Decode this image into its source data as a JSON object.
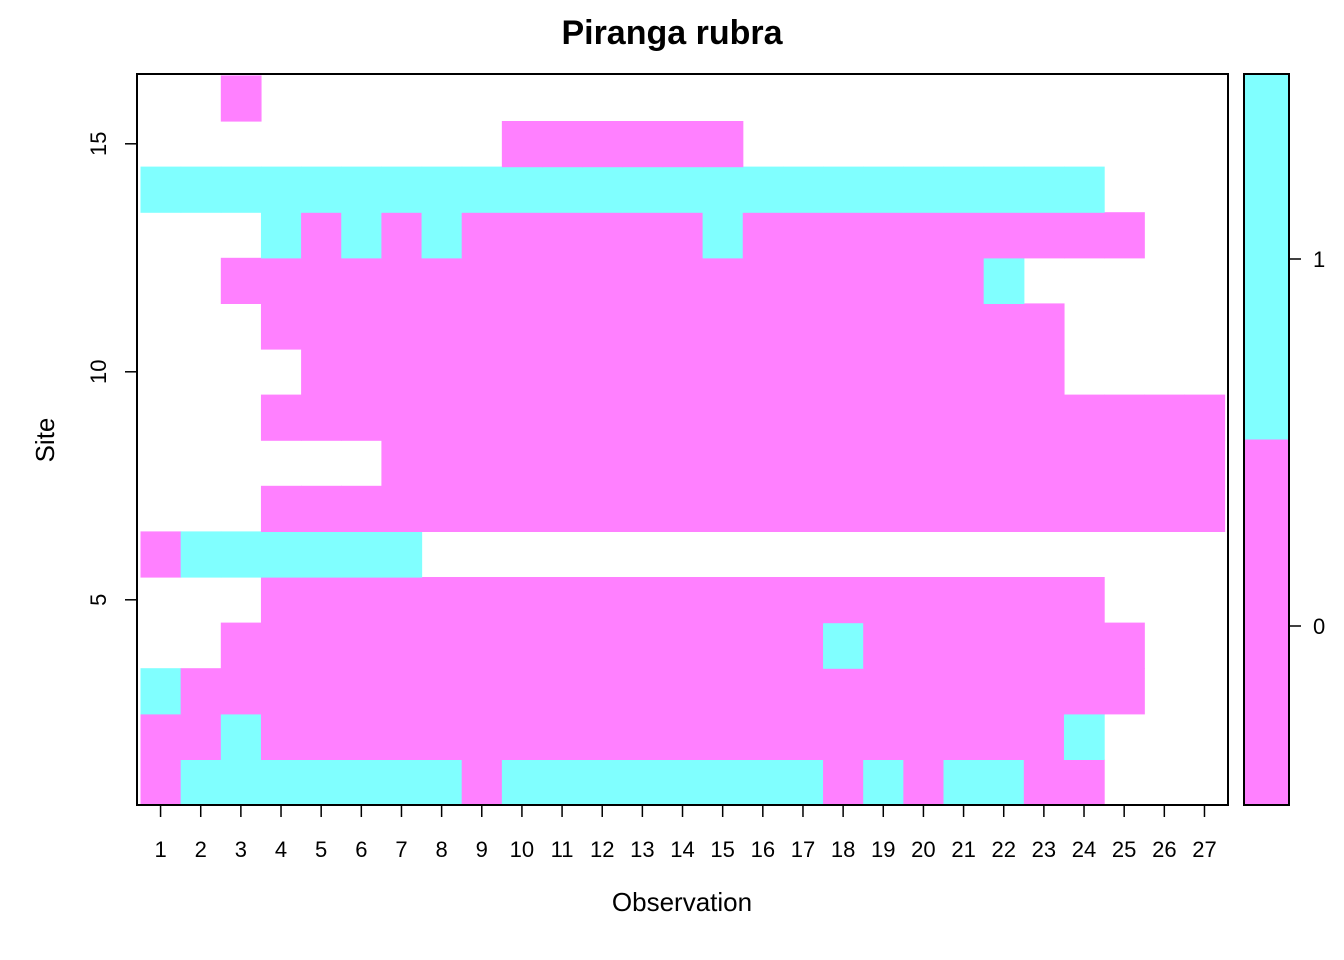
{
  "chart_data": {
    "type": "heatmap",
    "title": "Piranga rubra",
    "xlabel": "Observation",
    "ylabel": "Site",
    "x_ticks": [
      "1",
      "2",
      "3",
      "4",
      "5",
      "6",
      "7",
      "8",
      "9",
      "10",
      "11",
      "12",
      "13",
      "14",
      "15",
      "16",
      "17",
      "18",
      "19",
      "20",
      "21",
      "22",
      "23",
      "24",
      "25",
      "26",
      "27"
    ],
    "y_ticks": [
      "5",
      "10",
      "15"
    ],
    "y_tick_values": [
      5,
      10,
      15
    ],
    "xlim": [
      0.5,
      27.5
    ],
    "ylim": [
      0.5,
      16.5
    ],
    "grid": false,
    "legend": {
      "placement": "right",
      "levels": [
        "0",
        "1"
      ]
    },
    "colors": {
      "0": "#ff80ff",
      "1": "#80ffff",
      "missing": "#ffffff"
    },
    "rows": [
      {
        "site": 1,
        "values": [
          0,
          1,
          1,
          1,
          1,
          1,
          1,
          1,
          0,
          1,
          1,
          1,
          1,
          1,
          1,
          1,
          1,
          0,
          1,
          0,
          1,
          1,
          0,
          0,
          null,
          null,
          null
        ]
      },
      {
        "site": 2,
        "values": [
          0,
          0,
          1,
          0,
          0,
          0,
          0,
          0,
          0,
          0,
          0,
          0,
          0,
          0,
          0,
          0,
          0,
          0,
          0,
          0,
          0,
          0,
          0,
          1,
          null,
          null,
          null
        ]
      },
      {
        "site": 3,
        "values": [
          1,
          0,
          0,
          0,
          0,
          0,
          0,
          0,
          0,
          0,
          0,
          0,
          0,
          0,
          0,
          0,
          0,
          0,
          0,
          0,
          0,
          0,
          0,
          0,
          0,
          null,
          null
        ]
      },
      {
        "site": 4,
        "values": [
          null,
          null,
          0,
          0,
          0,
          0,
          0,
          0,
          0,
          0,
          0,
          0,
          0,
          0,
          0,
          0,
          0,
          1,
          0,
          0,
          0,
          0,
          0,
          0,
          0,
          null,
          null
        ]
      },
      {
        "site": 5,
        "values": [
          null,
          null,
          null,
          0,
          0,
          0,
          0,
          0,
          0,
          0,
          0,
          0,
          0,
          0,
          0,
          0,
          0,
          0,
          0,
          0,
          0,
          0,
          0,
          0,
          null,
          null,
          null
        ]
      },
      {
        "site": 6,
        "values": [
          0,
          1,
          1,
          1,
          1,
          1,
          1,
          null,
          null,
          null,
          null,
          null,
          null,
          null,
          null,
          null,
          null,
          null,
          null,
          null,
          null,
          null,
          null,
          null,
          null,
          null,
          null
        ]
      },
      {
        "site": 7,
        "values": [
          null,
          null,
          null,
          0,
          0,
          0,
          0,
          0,
          0,
          0,
          0,
          0,
          0,
          0,
          0,
          0,
          0,
          0,
          0,
          0,
          0,
          0,
          0,
          0,
          0,
          0,
          0
        ]
      },
      {
        "site": 8,
        "values": [
          null,
          null,
          null,
          null,
          null,
          null,
          0,
          0,
          0,
          0,
          0,
          0,
          0,
          0,
          0,
          0,
          0,
          0,
          0,
          0,
          0,
          0,
          0,
          0,
          0,
          0,
          0
        ]
      },
      {
        "site": 9,
        "values": [
          null,
          null,
          null,
          0,
          0,
          0,
          0,
          0,
          0,
          0,
          0,
          0,
          0,
          0,
          0,
          0,
          0,
          0,
          0,
          0,
          0,
          0,
          0,
          0,
          0,
          0,
          0
        ]
      },
      {
        "site": 10,
        "values": [
          null,
          null,
          null,
          null,
          0,
          0,
          0,
          0,
          0,
          0,
          0,
          0,
          0,
          0,
          0,
          0,
          0,
          0,
          0,
          0,
          0,
          0,
          0,
          null,
          null,
          null,
          null
        ]
      },
      {
        "site": 11,
        "values": [
          null,
          null,
          null,
          0,
          0,
          0,
          0,
          0,
          0,
          0,
          0,
          0,
          0,
          0,
          0,
          0,
          0,
          0,
          0,
          0,
          0,
          0,
          0,
          null,
          null,
          null,
          null
        ]
      },
      {
        "site": 12,
        "values": [
          null,
          null,
          0,
          0,
          0,
          0,
          0,
          0,
          0,
          0,
          0,
          0,
          0,
          0,
          0,
          0,
          0,
          0,
          0,
          0,
          0,
          1,
          null,
          null,
          null,
          null,
          null
        ]
      },
      {
        "site": 13,
        "values": [
          null,
          null,
          null,
          1,
          0,
          1,
          0,
          1,
          0,
          0,
          0,
          0,
          0,
          0,
          1,
          0,
          0,
          0,
          0,
          0,
          0,
          0,
          0,
          0,
          0,
          null,
          null
        ]
      },
      {
        "site": 14,
        "values": [
          1,
          1,
          1,
          1,
          1,
          1,
          1,
          1,
          1,
          1,
          1,
          1,
          1,
          1,
          1,
          1,
          1,
          1,
          1,
          1,
          1,
          1,
          1,
          1,
          null,
          null,
          null
        ]
      },
      {
        "site": 15,
        "values": [
          null,
          null,
          null,
          null,
          null,
          null,
          null,
          null,
          null,
          0,
          0,
          0,
          0,
          0,
          0,
          null,
          null,
          null,
          null,
          null,
          null,
          null,
          null,
          null,
          null,
          null,
          null
        ]
      },
      {
        "site": 16,
        "values": [
          null,
          null,
          0,
          null,
          null,
          null,
          null,
          null,
          null,
          null,
          null,
          null,
          null,
          null,
          null,
          null,
          null,
          null,
          null,
          null,
          null,
          null,
          null,
          null,
          null,
          null,
          null
        ]
      }
    ]
  }
}
